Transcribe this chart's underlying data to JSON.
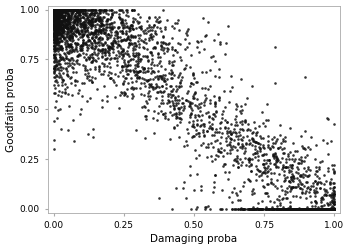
{
  "title": "",
  "xlabel": "Damaging proba",
  "ylabel": "Goodfaith proba",
  "xlim": [
    -0.02,
    1.02
  ],
  "ylim": [
    -0.02,
    1.02
  ],
  "xticks": [
    0.0,
    0.25,
    0.5,
    0.75,
    1.0
  ],
  "yticks": [
    0.0,
    0.25,
    0.5,
    0.75,
    1.0
  ],
  "marker_color": "#111111",
  "marker_size": 3.5,
  "marker_alpha": 0.85,
  "n_points": 4000,
  "random_seed": 42,
  "background_color": "#ffffff",
  "axes_facecolor": "#ffffff",
  "figure_facecolor": "#ffffff",
  "label_fontsize": 7.5,
  "tick_fontsize": 6.5
}
